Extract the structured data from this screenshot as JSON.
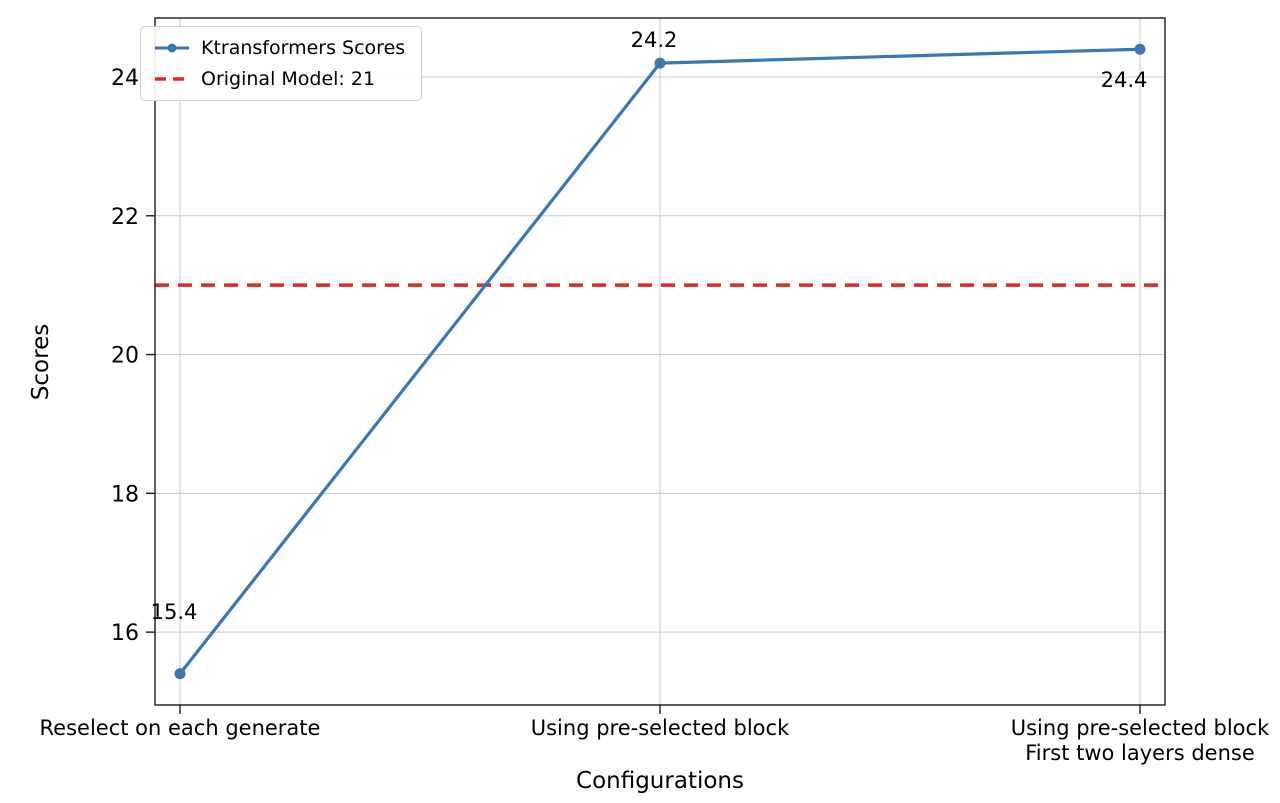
{
  "chart_data": {
    "type": "line",
    "title": "",
    "xlabel": "Configurations",
    "ylabel": "Scores",
    "categories": [
      "Reselect on each generate",
      "Using pre-selected block",
      "Using pre-selected block\nFirst two layers dense"
    ],
    "series": [
      {
        "name": "Ktransformers Scores",
        "values": [
          15.4,
          24.2,
          24.4
        ],
        "color": "#3878b4"
      }
    ],
    "reference_line": {
      "label": "Original Model: 21",
      "value": 21,
      "color": "#e8251f",
      "style": "dashed"
    },
    "point_labels": [
      "15.4",
      "24.2",
      "24.4"
    ],
    "yticks": [
      16,
      18,
      20,
      22,
      24
    ],
    "ylim": [
      14.95,
      24.85
    ],
    "grid": true,
    "legend_position": "upper left",
    "colors": {
      "grid": "#c9c9c9",
      "spine": "#1a1a1a",
      "text": "#000000"
    }
  }
}
